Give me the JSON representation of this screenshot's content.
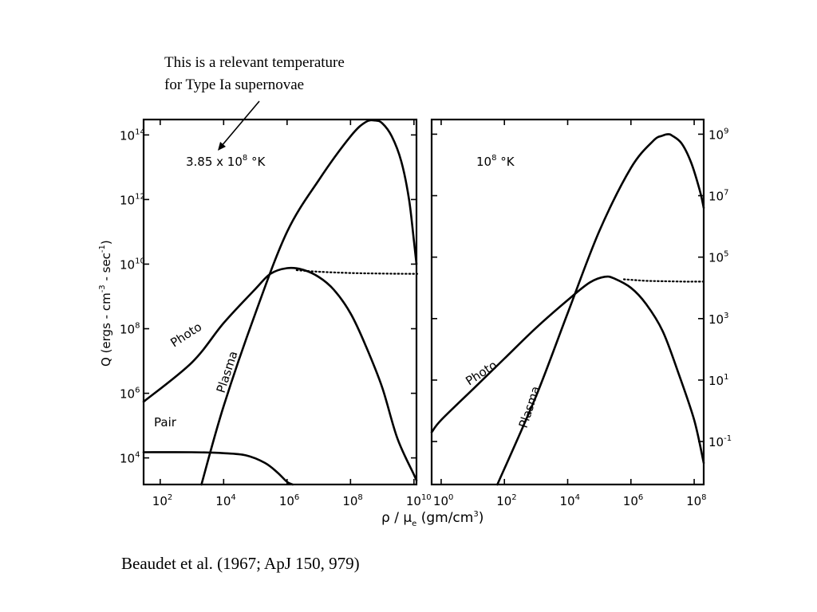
{
  "annotation": {
    "line1": "This is a relevant temperature",
    "line2": "for Type Ia supernovae"
  },
  "caption": "Beaudet et al. (1967; ApJ 150, 979)",
  "chart_data": [
    {
      "type": "line",
      "panel": "left",
      "panel_label": "3.85 x 10⁸ °K",
      "panel_label_parts": {
        "mantissa": "3.85 x 10",
        "exp": "8",
        "unit": " °K"
      },
      "xscale": "log",
      "yscale": "log",
      "xlim": [
        30,
        12000000000.0
      ],
      "ylim": [
        1500,
        300000000000000.0
      ],
      "xticks": [
        {
          "value": 100,
          "base": "10",
          "exp": "2"
        },
        {
          "value": 10000,
          "base": "10",
          "exp": "4"
        },
        {
          "value": 1000000,
          "base": "10",
          "exp": "6"
        },
        {
          "value": 100000000,
          "base": "10",
          "exp": "8"
        },
        {
          "value": 10000000000,
          "base": "10",
          "exp": "10"
        }
      ],
      "yticks": [
        {
          "value": 10000,
          "base": "10",
          "exp": "4"
        },
        {
          "value": 1000000,
          "base": "10",
          "exp": "6"
        },
        {
          "value": 100000000,
          "base": "10",
          "exp": "8"
        },
        {
          "value": 10000000000,
          "base": "10",
          "exp": "10"
        },
        {
          "value": 1000000000000,
          "base": "10",
          "exp": "12"
        },
        {
          "value": 100000000000000,
          "base": "10",
          "exp": "14"
        }
      ],
      "ylabel_parts": [
        "Q (ergs - cm",
        "-3",
        " - sec",
        "-1",
        ")"
      ],
      "series": [
        {
          "name": "Photo",
          "style": "solid",
          "x": [
            30,
            1000.0,
            10000.0,
            100000.0,
            300000.0,
            1000000.0,
            3000000.0,
            10000000.0,
            30000000.0,
            100000000.0,
            300000000.0,
            1000000000.0,
            3000000000.0,
            10000000000.0,
            12000000000.0
          ],
          "y": [
            550000.0,
            9000000.0,
            150000000.0,
            1700000000.0,
            5000000000.0,
            7500000000.0,
            6800000000.0,
            4000000000.0,
            1600000000.0,
            300000000.0,
            30000000.0,
            1500000.0,
            40000.0,
            3000.0,
            2000.0
          ]
        },
        {
          "name": "",
          "style": "dotted",
          "x": [
            2000000.0,
            10000000.0,
            100000000.0,
            1000000000.0,
            10000000000.0,
            12000000000.0
          ],
          "y": [
            6500000000.0,
            5800000000.0,
            5300000000.0,
            5100000000.0,
            5000000000.0,
            5000000000.0
          ]
        },
        {
          "name": "Plasma",
          "style": "solid",
          "x": [
            2000,
            10000.0,
            100000.0,
            1000000.0,
            10000000.0,
            100000000.0,
            300000000.0,
            600000000.0,
            1000000000.0,
            2000000000.0,
            4000000000.0,
            7000000000.0,
            10000000000.0,
            12000000000.0
          ],
          "y": [
            1500,
            400000.0,
            300000000.0,
            100000000000.0,
            4000000000000.0,
            90000000000000.0,
            250000000000000.0,
            280000000000000.0,
            230000000000000.0,
            90000000000000.0,
            15000000000000.0,
            1000000000000.0,
            50000000000.0,
            10000000000.0
          ]
        },
        {
          "name": "Pair",
          "style": "solid",
          "x": [
            30,
            1000.0,
            10000.0,
            50000.0,
            200000.0,
            500000.0,
            1000000.0,
            1500000.0
          ],
          "y": [
            15000.0,
            15000.0,
            14000.0,
            12000.0,
            7000.0,
            3500.0,
            1800.0,
            1500.0
          ]
        }
      ]
    },
    {
      "type": "line",
      "panel": "right",
      "panel_label": "10⁸ °K",
      "panel_label_parts": {
        "mantissa": "10",
        "exp": "8",
        "unit": " °K"
      },
      "xscale": "log",
      "yscale": "log",
      "xlim": [
        0.5,
        200000000.0
      ],
      "ylim": [
        0.004,
        3000000000.0
      ],
      "xticks": [
        {
          "value": 1,
          "base": "10",
          "exp": "0"
        },
        {
          "value": 100,
          "base": "10",
          "exp": "2"
        },
        {
          "value": 10000,
          "base": "10",
          "exp": "4"
        },
        {
          "value": 1000000,
          "base": "10",
          "exp": "6"
        },
        {
          "value": 100000000,
          "base": "10",
          "exp": "8"
        }
      ],
      "yticks": [
        {
          "value": 0.1,
          "base": "10",
          "exp": "-1"
        },
        {
          "value": 10,
          "base": "10",
          "exp": "1"
        },
        {
          "value": 1000,
          "base": "10",
          "exp": "3"
        },
        {
          "value": 100000,
          "base": "10",
          "exp": "5"
        },
        {
          "value": 10000000,
          "base": "10",
          "exp": "7"
        },
        {
          "value": 1000000000,
          "base": "10",
          "exp": "9"
        }
      ],
      "xlabel_parts": {
        "rho": "ρ / μ",
        "sub": "e",
        "units": " (gm/cm",
        "exp": "3",
        "close": ")"
      },
      "series": [
        {
          "name": "Photo",
          "style": "solid",
          "x": [
            0.5,
            1,
            10,
            100,
            1000,
            10000.0,
            50000.0,
            150000.0,
            300000.0,
            1000000.0,
            3000000.0,
            10000000.0,
            30000000.0,
            100000000.0,
            200000000.0
          ],
          "y": [
            0.2,
            0.5,
            5,
            50,
            500,
            4000.0,
            15000.0,
            23000.0,
            20000.0,
            10000.0,
            3000.0,
            400,
            20,
            0.5,
            0.02
          ]
        },
        {
          "name": "",
          "style": "dotted",
          "x": [
            600000.0,
            3000000.0,
            10000000.0,
            50000000.0,
            100000000.0,
            200000000.0
          ],
          "y": [
            19000.0,
            17000.0,
            16500.0,
            16000.0,
            16000.0,
            16000.0
          ]
        },
        {
          "name": "Plasma",
          "style": "solid",
          "x": [
            60,
            1000,
            10000.0,
            100000.0,
            1000000.0,
            5000000.0,
            10000000.0,
            15000000.0,
            20000000.0,
            40000000.0,
            80000000.0,
            150000000.0,
            200000000.0
          ],
          "y": [
            0.004,
            3,
            1500.0,
            700000.0,
            80000000.0,
            600000000.0,
            900000000.0,
            1000000000.0,
            900000000.0,
            500000000.0,
            120000000.0,
            15000000.0,
            4000000.0
          ]
        }
      ]
    }
  ]
}
